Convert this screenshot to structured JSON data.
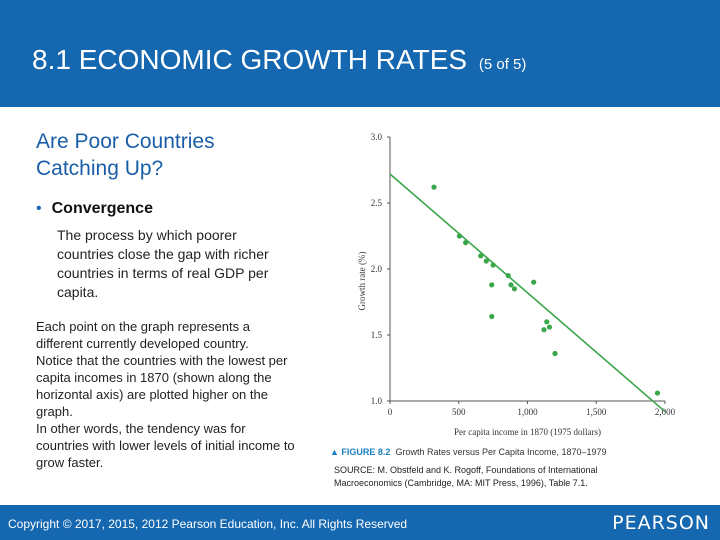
{
  "header": {
    "title": "8.1 ECONOMIC GROWTH RATES",
    "subtitle": "(5 of 5)"
  },
  "content": {
    "heading": "Are Poor Countries Catching Up?",
    "bullet_label": "Convergence",
    "bullet_text": "The process by which poorer countries close the gap with richer countries in terms of real GDP per capita.",
    "para_line1": "Each point on the graph represents a different currently developed country.",
    "para_line2": "Notice that the countries with the lowest per capita incomes in 1870 (shown along the horizontal axis) are plotted higher on the graph.",
    "para_line3": "In other words, the tendency was for countries with lower levels of initial income to grow faster."
  },
  "figure": {
    "number": "FIGURE 8.2",
    "caption": "Growth Rates versus Per Capita Income, 1870–1979",
    "source": "SOURCE: M. Obstfeld and K. Rogoff, Foundations of International Macroeconomics (Cambridge, MA: MIT Press, 1996), Table 7.1."
  },
  "footer": {
    "copyright": "Copyright © 2017, 2015, 2012 Pearson Education, Inc. All Rights Reserved",
    "logo": "PEARSON"
  },
  "colors": {
    "brand_blue": "#1567b0",
    "points": "#3aa64a"
  },
  "chart_data": {
    "type": "scatter",
    "title": "Growth Rates versus Per Capita Income, 1870–1979",
    "xlabel": "Per capita income in 1870 (1975 dollars)",
    "ylabel": "Growth rate (%)",
    "xlim": [
      0,
      2000
    ],
    "ylim": [
      1.0,
      3.0
    ],
    "x_ticks": [
      0,
      500,
      1000,
      1500,
      2000
    ],
    "x_tick_labels": [
      "0",
      "500",
      "1,000",
      "1,500",
      "2,000"
    ],
    "y_ticks": [
      1.0,
      1.5,
      2.0,
      2.5,
      3.0
    ],
    "y_tick_labels": [
      "1.0",
      "1.5",
      "2.0",
      "2.5",
      "3.0"
    ],
    "points": [
      {
        "x": 320,
        "y": 2.62
      },
      {
        "x": 505,
        "y": 2.25
      },
      {
        "x": 550,
        "y": 2.2
      },
      {
        "x": 660,
        "y": 2.1
      },
      {
        "x": 700,
        "y": 2.06
      },
      {
        "x": 750,
        "y": 2.03
      },
      {
        "x": 740,
        "y": 1.88
      },
      {
        "x": 860,
        "y": 1.95
      },
      {
        "x": 880,
        "y": 1.88
      },
      {
        "x": 905,
        "y": 1.85
      },
      {
        "x": 1045,
        "y": 1.9
      },
      {
        "x": 740,
        "y": 1.64
      },
      {
        "x": 1120,
        "y": 1.54
      },
      {
        "x": 1140,
        "y": 1.6
      },
      {
        "x": 1160,
        "y": 1.56
      },
      {
        "x": 1200,
        "y": 1.36
      },
      {
        "x": 1945,
        "y": 1.06
      }
    ],
    "trendline": {
      "x": [
        0,
        2000
      ],
      "y": [
        2.72,
        0.92
      ]
    }
  }
}
